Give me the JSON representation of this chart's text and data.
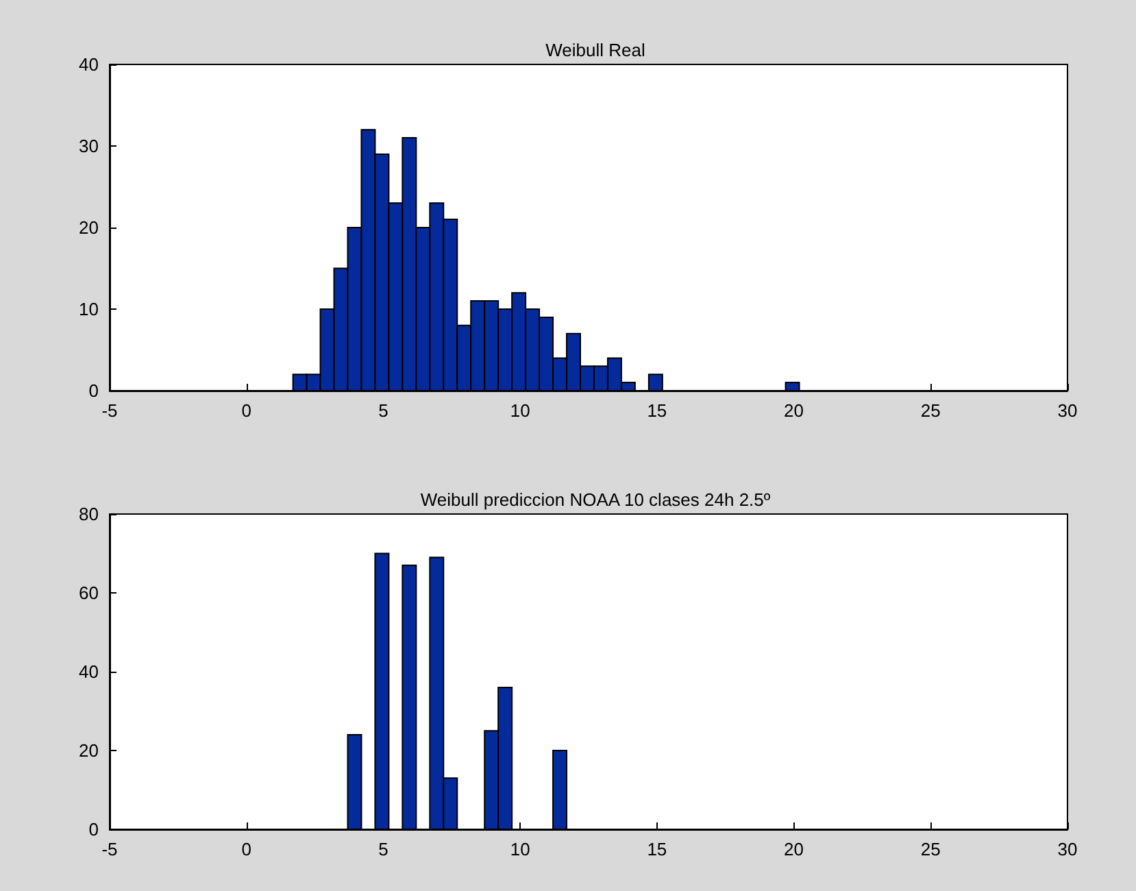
{
  "chart_data": [
    {
      "type": "histogram",
      "title": "Weibull Real",
      "color": "#052a9b",
      "bins": [
        1.7,
        2.2,
        2.7,
        3.2,
        3.7,
        4.2,
        4.7,
        5.2,
        5.7,
        6.2,
        6.7,
        7.2,
        7.7,
        8.2,
        8.7,
        9.2,
        9.7,
        10.2,
        10.7,
        11.2,
        11.7,
        12.2,
        12.7,
        13.2,
        13.7,
        14.2,
        14.7,
        15.2,
        15.7,
        16.2,
        16.7,
        17.2,
        17.7,
        18.2,
        18.7,
        19.2,
        19.7,
        20.2
      ],
      "values": [
        2,
        2,
        10,
        15,
        20,
        32,
        29,
        23,
        31,
        20,
        23,
        21,
        8,
        11,
        11,
        10,
        12,
        10,
        9,
        4,
        7,
        3,
        3,
        4,
        1,
        0,
        2,
        0,
        0,
        0,
        0,
        0,
        0,
        0,
        0,
        0,
        1
      ],
      "xlim": [
        -5,
        30
      ],
      "xticks": [
        -5,
        0,
        5,
        10,
        15,
        20,
        25,
        30
      ],
      "ylim": [
        0,
        40
      ],
      "yticks": [
        0,
        10,
        20,
        30,
        40
      ]
    },
    {
      "type": "histogram",
      "title": "Weibull prediccion NOAA 10 clases 24h 2.5º",
      "color": "#052a9b",
      "bins": [
        3.7,
        4.2,
        4.7,
        5.2,
        5.7,
        6.2,
        6.7,
        7.2,
        7.7,
        8.2,
        8.7,
        9.2,
        9.7,
        10.2,
        10.7,
        11.2,
        11.7
      ],
      "values": [
        24,
        0,
        70,
        0,
        67,
        0,
        69,
        13,
        0,
        0,
        25,
        36,
        0,
        0,
        0,
        20
      ],
      "xlim": [
        -5,
        30
      ],
      "xticks": [
        -5,
        0,
        5,
        10,
        15,
        20,
        25,
        30
      ],
      "ylim": [
        0,
        80
      ],
      "yticks": [
        0,
        20,
        40,
        60,
        80
      ]
    }
  ]
}
